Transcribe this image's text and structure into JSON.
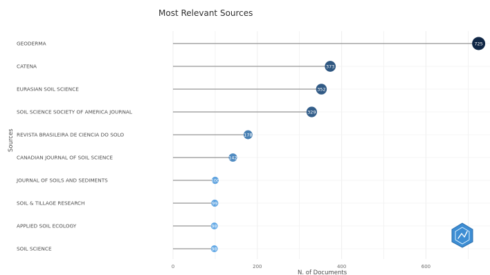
{
  "chart_data": {
    "type": "scatter",
    "title": "Most Relevant Sources",
    "xlabel": "N. of Documents",
    "ylabel": "Sources",
    "xlim": [
      0,
      725
    ],
    "x_ticks": [
      0,
      200,
      400,
      600
    ],
    "grid": true,
    "legend": "none",
    "categories": [
      "GEODERMA",
      "CATENA",
      "EURASIAN SOIL SCIENCE",
      "SOIL SCIENCE SOCIETY OF AMERICA JOURNAL",
      "REVISTA BRASILEIRA DE CIENCIA DO SOLO",
      "CANADIAN JOURNAL OF SOIL SCIENCE",
      "JOURNAL OF SOILS AND SEDIMENTS",
      "SOIL & TILLAGE RESEARCH",
      "APPLIED SOIL ECOLOGY",
      "SOIL SCIENCE"
    ],
    "values": [
      725,
      373,
      352,
      329,
      178,
      142,
      100,
      99,
      98,
      98
    ],
    "value_labels": [
      "725",
      "373",
      "352",
      "329",
      "178",
      "142",
      "100",
      "99",
      "98",
      "98"
    ],
    "series": [
      {
        "values": [
          725,
          373,
          352,
          329,
          178,
          142,
          100,
          99,
          98,
          98
        ]
      }
    ],
    "colors": {
      "low": "#63a9e6",
      "high": "#102746",
      "stem": "#7a7a7a",
      "grid": "#eeeeee"
    }
  },
  "logo": {
    "name": "bibliometrix-logo",
    "colors": {
      "fill": "#3d8dd3",
      "stroke": "#2a6dab"
    }
  }
}
